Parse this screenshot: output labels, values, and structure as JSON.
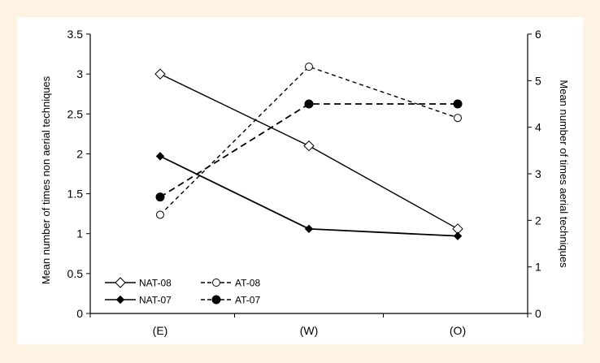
{
  "chart_data": {
    "type": "line",
    "title": "",
    "categories": [
      "(E)",
      "(W)",
      "(O)"
    ],
    "xlabel": "",
    "ylabel_left": "Mean number of times non aerial techniques",
    "ylabel_right": "Mean number of times aerial techniques",
    "ylim_left": [
      0,
      3.5
    ],
    "ylim_right": [
      0,
      6
    ],
    "yticks_left": [
      "0",
      "0.5",
      "1",
      "1.5",
      "2",
      "2.5",
      "3",
      "3.5"
    ],
    "yticks_right": [
      "0",
      "1",
      "2",
      "3",
      "4",
      "5",
      "6"
    ],
    "grid": false,
    "legend_position": "bottom-left",
    "series": [
      {
        "name": "NAT-08",
        "axis": "left",
        "values": [
          3.0,
          2.1,
          1.06
        ],
        "line": "solid",
        "marker": "diamond-open"
      },
      {
        "name": "NAT-07",
        "axis": "left",
        "values": [
          1.97,
          1.06,
          0.97
        ],
        "line": "solid",
        "marker": "diamond-filled"
      },
      {
        "name": "AT-08",
        "axis": "right",
        "values": [
          2.12,
          5.3,
          4.2
        ],
        "line": "dashed",
        "marker": "circle-open"
      },
      {
        "name": "AT-07",
        "axis": "right",
        "values": [
          2.5,
          4.5,
          4.5
        ],
        "line": "dashed",
        "marker": "circle-filled"
      }
    ]
  }
}
